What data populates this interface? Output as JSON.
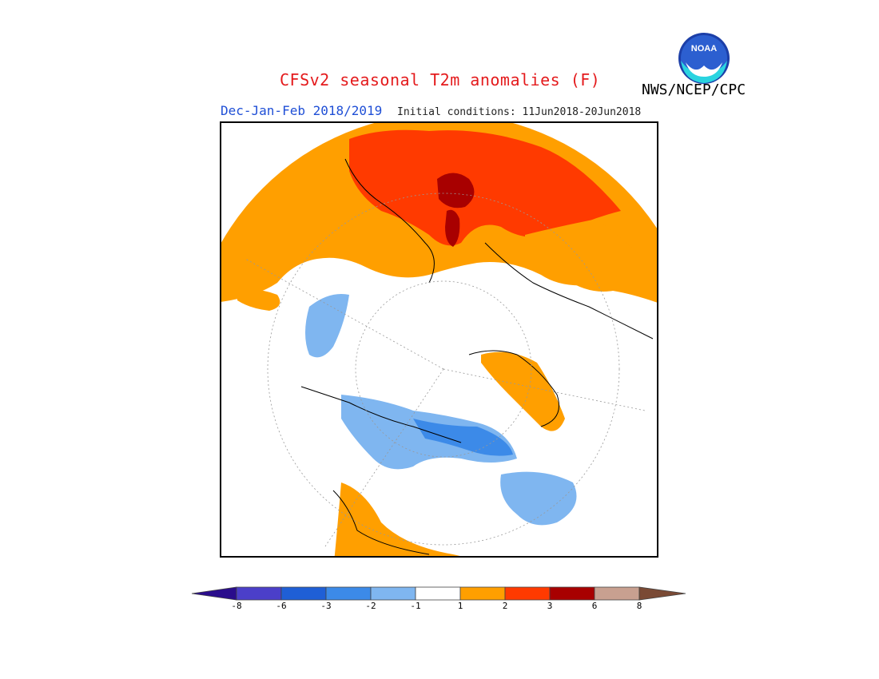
{
  "header": {
    "title": "CFSv2 seasonal T2m anomalies (F)",
    "organization": "NWS/NCEP/CPC",
    "season": "Dec-Jan-Feb 2018/2019",
    "initial_conditions": "Initial conditions: 11Jun2018-20Jun2018",
    "logo_text": "NOAA"
  },
  "colors": {
    "title": "#e41a1c",
    "season": "#1f4fd6",
    "bins": [
      "#2a0d8c",
      "#4b3fc9",
      "#1f5fd6",
      "#3c8ae8",
      "#7fb6f0",
      "#ffffff",
      "#ff9f00",
      "#ff3a00",
      "#a80000",
      "#c8a090",
      "#7a4a35"
    ]
  },
  "colorbar": {
    "labels": [
      "-8",
      "-6",
      "-3",
      "-2",
      "-1",
      "1",
      "2",
      "3",
      "6",
      "8"
    ]
  },
  "icons": {
    "logo": "noaa-logo-icon"
  }
}
